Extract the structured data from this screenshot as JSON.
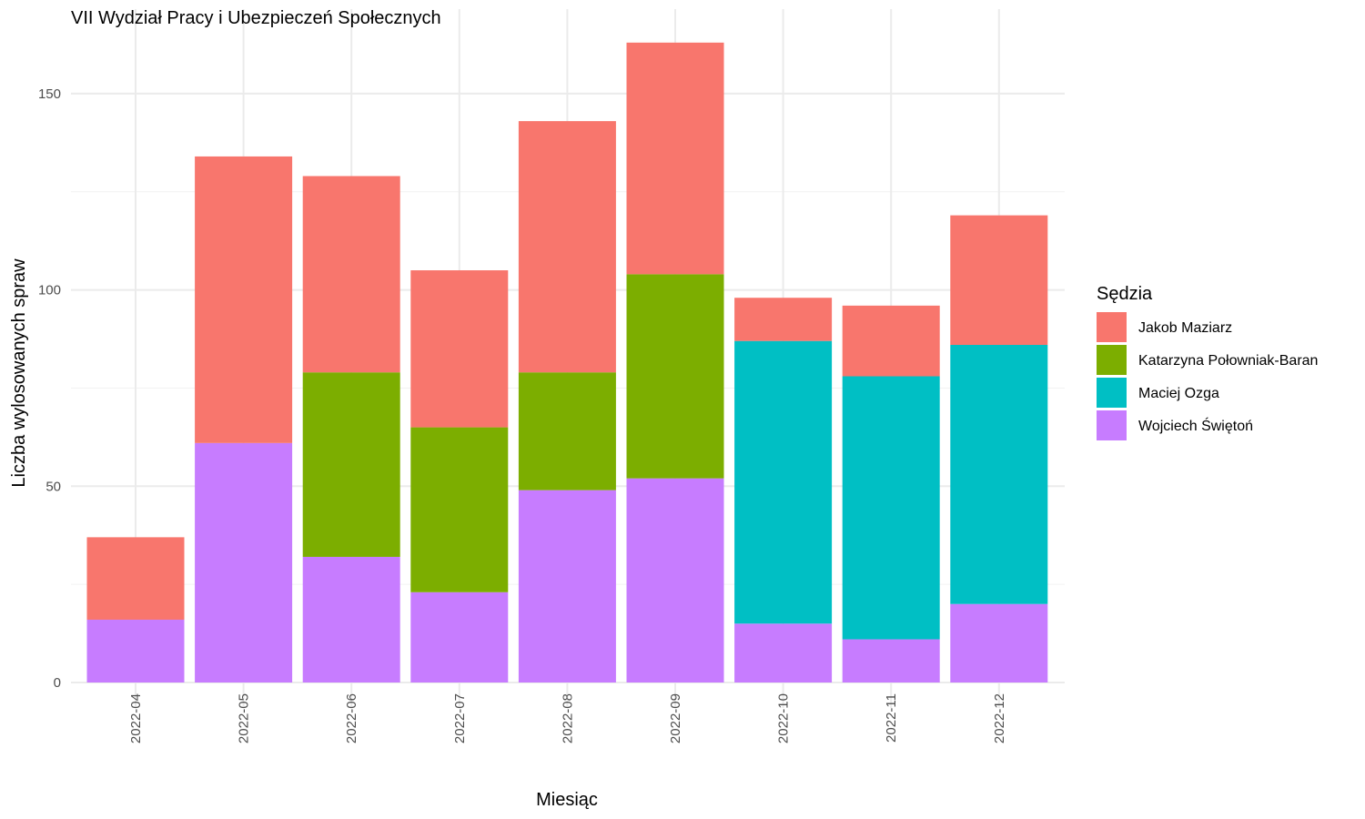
{
  "chart_data": {
    "type": "bar",
    "stacked": true,
    "title": "VII Wydział Pracy i Ubezpieczeń Społecznych",
    "xlabel": "Miesiąc",
    "ylabel": "Liczba wylosowanych spraw",
    "ylim": [
      0,
      165
    ],
    "yticks": [
      0,
      50,
      100,
      150
    ],
    "grid": true,
    "legend": {
      "title": "Sędzia",
      "placement": "right"
    },
    "categories": [
      "2022-04",
      "2022-05",
      "2022-06",
      "2022-07",
      "2022-08",
      "2022-09",
      "2022-10",
      "2022-11",
      "2022-12"
    ],
    "series": [
      {
        "name": "Wojciech Świętoń",
        "color": "#C77CFF",
        "values": [
          16,
          61,
          32,
          23,
          49,
          52,
          15,
          11,
          20
        ]
      },
      {
        "name": "Maciej Ozga",
        "color": "#00BFC4",
        "values": [
          0,
          0,
          0,
          0,
          0,
          0,
          72,
          67,
          66
        ]
      },
      {
        "name": "Katarzyna Połowniak-Baran",
        "color": "#7CAE00",
        "values": [
          0,
          0,
          47,
          42,
          30,
          52,
          0,
          0,
          0
        ]
      },
      {
        "name": "Jakob Maziarz",
        "color": "#F8766D",
        "values": [
          21,
          73,
          50,
          40,
          64,
          59,
          11,
          18,
          33
        ]
      }
    ],
    "legend_order": [
      "Jakob Maziarz",
      "Katarzyna Połowniak-Baran",
      "Maciej Ozga",
      "Wojciech Świętoń"
    ]
  }
}
